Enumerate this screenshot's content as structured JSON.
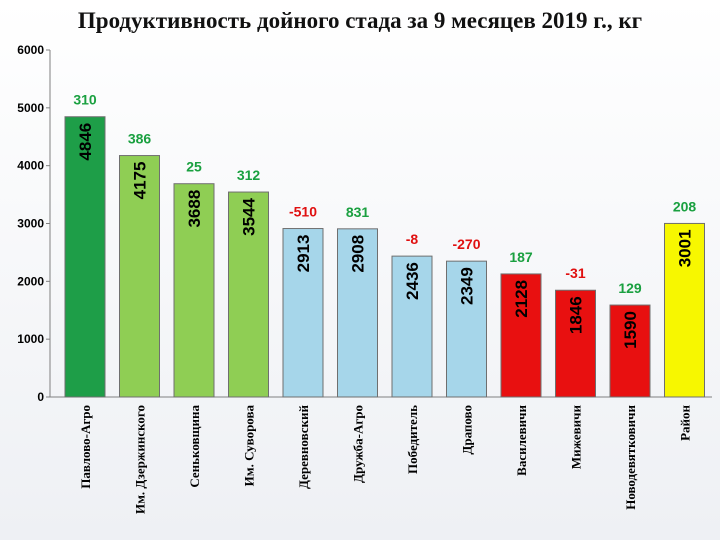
{
  "chart_data": {
    "type": "bar",
    "title": "Продуктивность дойного стада за 9 месяцев 2019 г., кг",
    "categories": [
      "Павлово-Агро",
      "Им. Дзержинского",
      "Сеньковщина",
      "Им. Суворова",
      "Деревновский",
      "Дружба-Агро",
      "Победитель",
      "Драпово",
      "Василевичи",
      "Мижевичи",
      "Новодевятковичи",
      "Район"
    ],
    "values": [
      4846,
      4175,
      3688,
      3544,
      2913,
      2908,
      2436,
      2349,
      2128,
      1846,
      1590,
      3001
    ],
    "value_labels": [
      "4846",
      "4175",
      "3688",
      "3544",
      "2913",
      "2908",
      "2436",
      "2349",
      "2128",
      "1846",
      "1590",
      "3001"
    ],
    "change_labels": [
      "310",
      "386",
      "25",
      "312",
      "-510",
      "831",
      "-8",
      "-270",
      "187",
      "-31",
      "129",
      "208"
    ],
    "bar_colors": [
      "#1e9e48",
      "#8fce54",
      "#8fce54",
      "#8fce54",
      "#a6d6ea",
      "#a6d6ea",
      "#a6d6ea",
      "#a6d6ea",
      "#e81010",
      "#e81010",
      "#e81010",
      "#f7f700"
    ],
    "change_colors": [
      "#1aa040",
      "#1aa040",
      "#1aa040",
      "#1aa040",
      "#e01010",
      "#1aa040",
      "#e01010",
      "#e01010",
      "#1aa040",
      "#e01010",
      "#1aa040",
      "#1aa040"
    ],
    "yticks": [
      "0",
      "1000",
      "2000",
      "3000",
      "4000",
      "5000",
      "6000"
    ],
    "ylim": [
      0,
      6000
    ],
    "grid": false,
    "legend": "none"
  }
}
